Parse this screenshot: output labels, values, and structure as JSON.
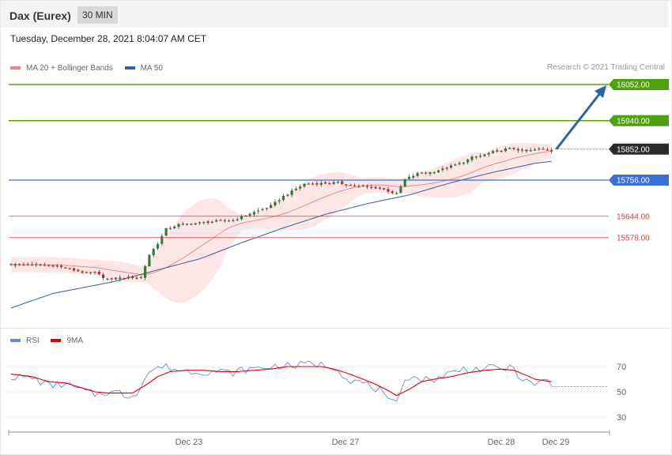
{
  "header": {
    "title": "Dax (Eurex)",
    "timeframe": "30 MIN"
  },
  "timestamp": "Tuesday, December 28, 2021 8:04:07 AM CET",
  "legend": {
    "ma20_label": "MA 20 + Bollinger Bands",
    "ma50_label": "MA 50",
    "rsi_label": "RSI",
    "ma9_label": "9MA"
  },
  "credit": "Research © 2021 Trading Central",
  "colors": {
    "target": "#4ea20e",
    "pivot": "#3a6fd8",
    "support": "#e53935",
    "current": "#2b2b2b",
    "ma50": "#3b5aa0",
    "ma20": "#f08080",
    "bands": "#fde2e2",
    "rsi": "#6b86d6",
    "ma9": "#e00000",
    "arrow": "#2e5fa7",
    "candle_up": "#2f7d32",
    "candle_down": "#c62828"
  },
  "chart_data": [
    {
      "type": "candlestick",
      "x_labels": [
        "Dec 23",
        "Dec 27",
        "Dec 28",
        "Dec 29"
      ],
      "ylim": [
        15300,
        16100
      ],
      "levels": [
        {
          "value": 16052.0,
          "label": "16052.00",
          "kind": "target"
        },
        {
          "value": 15940.0,
          "label": "15940.00",
          "kind": "target"
        },
        {
          "value": 15852.0,
          "label": "15852.00",
          "kind": "current"
        },
        {
          "value": 15756.0,
          "label": "15756.00",
          "kind": "pivot"
        },
        {
          "value": 15644.0,
          "label": "15644.00",
          "kind": "support"
        },
        {
          "value": 15578.0,
          "label": "15578.00",
          "kind": "support"
        }
      ],
      "close_anchors": [
        [
          0,
          15495
        ],
        [
          10,
          15492
        ],
        [
          18,
          15468
        ],
        [
          20,
          15470
        ],
        [
          23,
          15448
        ],
        [
          27,
          15454
        ],
        [
          31,
          15455
        ],
        [
          33,
          15525
        ],
        [
          35,
          15560
        ],
        [
          37,
          15604
        ],
        [
          40,
          15618
        ],
        [
          44,
          15622
        ],
        [
          50,
          15630
        ],
        [
          53,
          15632
        ],
        [
          57,
          15652
        ],
        [
          62,
          15676
        ],
        [
          65,
          15706
        ],
        [
          70,
          15744
        ],
        [
          78,
          15748
        ],
        [
          80,
          15742
        ],
        [
          84,
          15735
        ],
        [
          88,
          15732
        ],
        [
          90,
          15722
        ],
        [
          92,
          15713
        ],
        [
          94,
          15758
        ],
        [
          97,
          15776
        ],
        [
          100,
          15780
        ],
        [
          103,
          15790
        ],
        [
          106,
          15803
        ],
        [
          108,
          15812
        ],
        [
          110,
          15826
        ],
        [
          112,
          15831
        ],
        [
          115,
          15843
        ],
        [
          118,
          15852
        ],
        [
          120,
          15853
        ],
        [
          123,
          15845
        ],
        [
          126,
          15852
        ],
        [
          128,
          15851
        ],
        [
          129,
          15847
        ]
      ],
      "ma50_anchors": [
        [
          0,
          15360
        ],
        [
          10,
          15405
        ],
        [
          18,
          15425
        ],
        [
          25,
          15443
        ],
        [
          35,
          15478
        ],
        [
          45,
          15512
        ],
        [
          55,
          15562
        ],
        [
          65,
          15608
        ],
        [
          75,
          15650
        ],
        [
          85,
          15683
        ],
        [
          95,
          15710
        ],
        [
          105,
          15748
        ],
        [
          115,
          15780
        ],
        [
          125,
          15808
        ],
        [
          129,
          15814
        ]
      ],
      "projection": {
        "from": 15852,
        "to": 16052
      }
    },
    {
      "type": "line",
      "title": "RSI",
      "y_ticks": [
        70,
        50,
        30
      ],
      "ylim": [
        20,
        80
      ],
      "series": [
        {
          "name": "RSI",
          "anchors": [
            [
              0,
              62
            ],
            [
              5,
              61
            ],
            [
              9,
              55
            ],
            [
              13,
              56
            ],
            [
              17,
              51
            ],
            [
              20,
              48
            ],
            [
              23,
              50
            ],
            [
              26,
              49
            ],
            [
              28,
              46
            ],
            [
              30,
              50
            ],
            [
              33,
              66
            ],
            [
              36,
              70
            ],
            [
              38,
              69
            ],
            [
              40,
              67
            ],
            [
              44,
              66
            ],
            [
              50,
              66
            ],
            [
              53,
              65
            ],
            [
              55,
              67
            ],
            [
              60,
              69
            ],
            [
              62,
              70
            ],
            [
              65,
              71
            ],
            [
              67,
              70
            ],
            [
              70,
              72
            ],
            [
              72,
              72
            ],
            [
              75,
              71
            ],
            [
              78,
              69
            ],
            [
              80,
              60
            ],
            [
              84,
              57
            ],
            [
              88,
              51
            ],
            [
              90,
              42
            ],
            [
              92,
              40
            ],
            [
              94,
              62
            ],
            [
              97,
              61
            ],
            [
              100,
              59
            ],
            [
              104,
              64
            ],
            [
              108,
              68
            ],
            [
              112,
              68
            ],
            [
              116,
              69
            ],
            [
              120,
              68
            ],
            [
              122,
              60
            ],
            [
              124,
              56
            ],
            [
              126,
              57
            ],
            [
              128,
              59
            ],
            [
              129,
              54
            ]
          ]
        },
        {
          "name": "9MA",
          "anchors": [
            [
              0,
              64
            ],
            [
              5,
              62
            ],
            [
              9,
              58
            ],
            [
              13,
              57
            ],
            [
              17,
              53
            ],
            [
              20,
              50
            ],
            [
              23,
              49
            ],
            [
              26,
              49
            ],
            [
              29,
              49
            ],
            [
              32,
              55
            ],
            [
              35,
              62
            ],
            [
              38,
              66
            ],
            [
              42,
              67
            ],
            [
              46,
              67
            ],
            [
              50,
              66
            ],
            [
              54,
              66
            ],
            [
              58,
              67
            ],
            [
              62,
              68
            ],
            [
              66,
              70
            ],
            [
              70,
              70
            ],
            [
              74,
              70
            ],
            [
              77,
              68
            ],
            [
              80,
              65
            ],
            [
              84,
              60
            ],
            [
              87,
              56
            ],
            [
              90,
              51
            ],
            [
              92,
              47
            ],
            [
              95,
              52
            ],
            [
              98,
              58
            ],
            [
              101,
              60
            ],
            [
              105,
              62
            ],
            [
              109,
              65
            ],
            [
              113,
              67
            ],
            [
              117,
              68
            ],
            [
              120,
              67
            ],
            [
              123,
              63
            ],
            [
              125,
              60
            ],
            [
              127,
              59
            ],
            [
              129,
              58
            ]
          ]
        }
      ]
    }
  ]
}
